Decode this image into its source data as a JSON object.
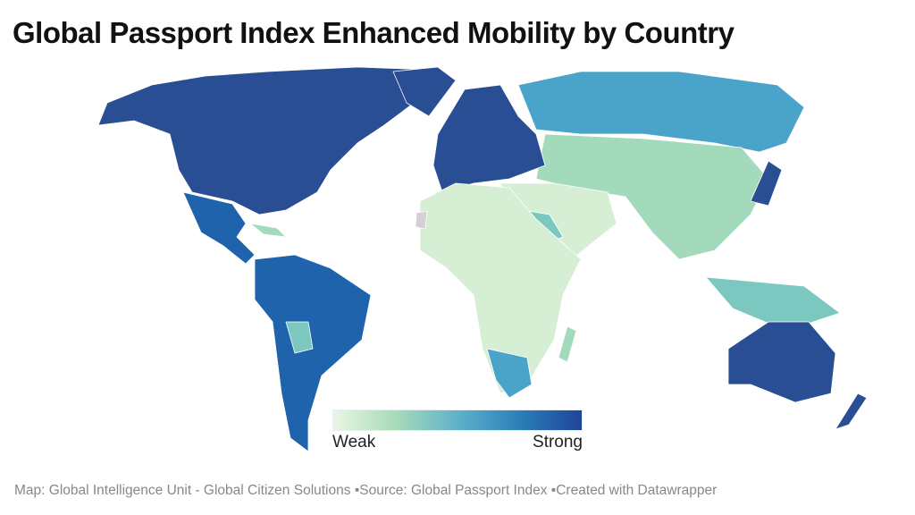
{
  "title": "Global Passport Index Enhanced Mobility by Country",
  "legend": {
    "min_label": "Weak",
    "max_label": "Strong",
    "scale_colors": [
      "#eaf6e4",
      "#a7dbb8",
      "#5fb2c9",
      "#2b7fb8",
      "#20449a"
    ]
  },
  "footer": {
    "credit": "Map: Global Intelligence Unit - Global Citizen Solutions",
    "source": "Source: Global Passport Index",
    "tool": "Created with Datawrapper"
  },
  "colors": {
    "strong": "#2a4e93",
    "high": "#1f63ad",
    "mid": "#4aa3c9",
    "midlow": "#7cc8c1",
    "low": "#a3dabb",
    "weak": "#d6eed3",
    "nodata": "#d4d0d6"
  }
}
